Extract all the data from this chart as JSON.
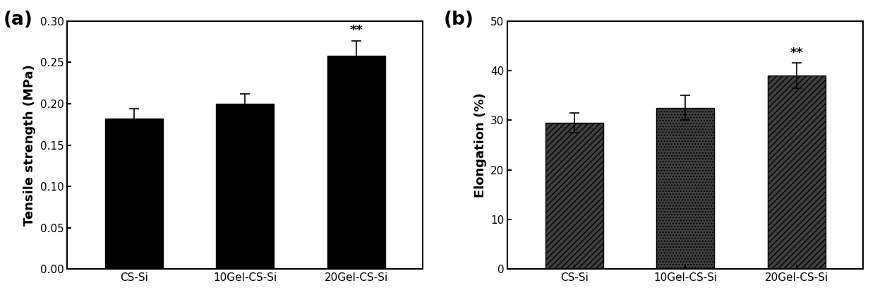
{
  "chart_a": {
    "categories": [
      "CS-Si",
      "10Gel-CS-Si",
      "20Gel-CS-Si"
    ],
    "values": [
      0.182,
      0.2,
      0.258
    ],
    "errors": [
      0.012,
      0.012,
      0.018
    ],
    "ylabel": "Tensile strength (MPa)",
    "ylim": [
      0,
      0.3
    ],
    "yticks": [
      0.0,
      0.05,
      0.1,
      0.15,
      0.2,
      0.25,
      0.3
    ],
    "significance": [
      null,
      null,
      "**"
    ],
    "bar_color": "#000000",
    "label": "(a)"
  },
  "chart_b": {
    "categories": [
      "CS-Si",
      "10Gel-CS-Si",
      "20Gel-CS-Si"
    ],
    "values": [
      29.5,
      32.5,
      39.0
    ],
    "errors": [
      2.0,
      2.5,
      2.5
    ],
    "ylabel": "Elongation (%)",
    "ylim": [
      0,
      50
    ],
    "yticks": [
      0,
      10,
      20,
      30,
      40,
      50
    ],
    "significance": [
      null,
      null,
      "**"
    ],
    "hatches": [
      "////",
      "....",
      "////"
    ],
    "hatch_colors": [
      "#000000",
      "#000000",
      "#000000"
    ],
    "face_colors": [
      "#404040",
      "#404040",
      "#404040"
    ],
    "label": "(b)"
  },
  "font_size": 13,
  "label_font_size": 19,
  "tick_font_size": 11,
  "bar_width": 0.52
}
